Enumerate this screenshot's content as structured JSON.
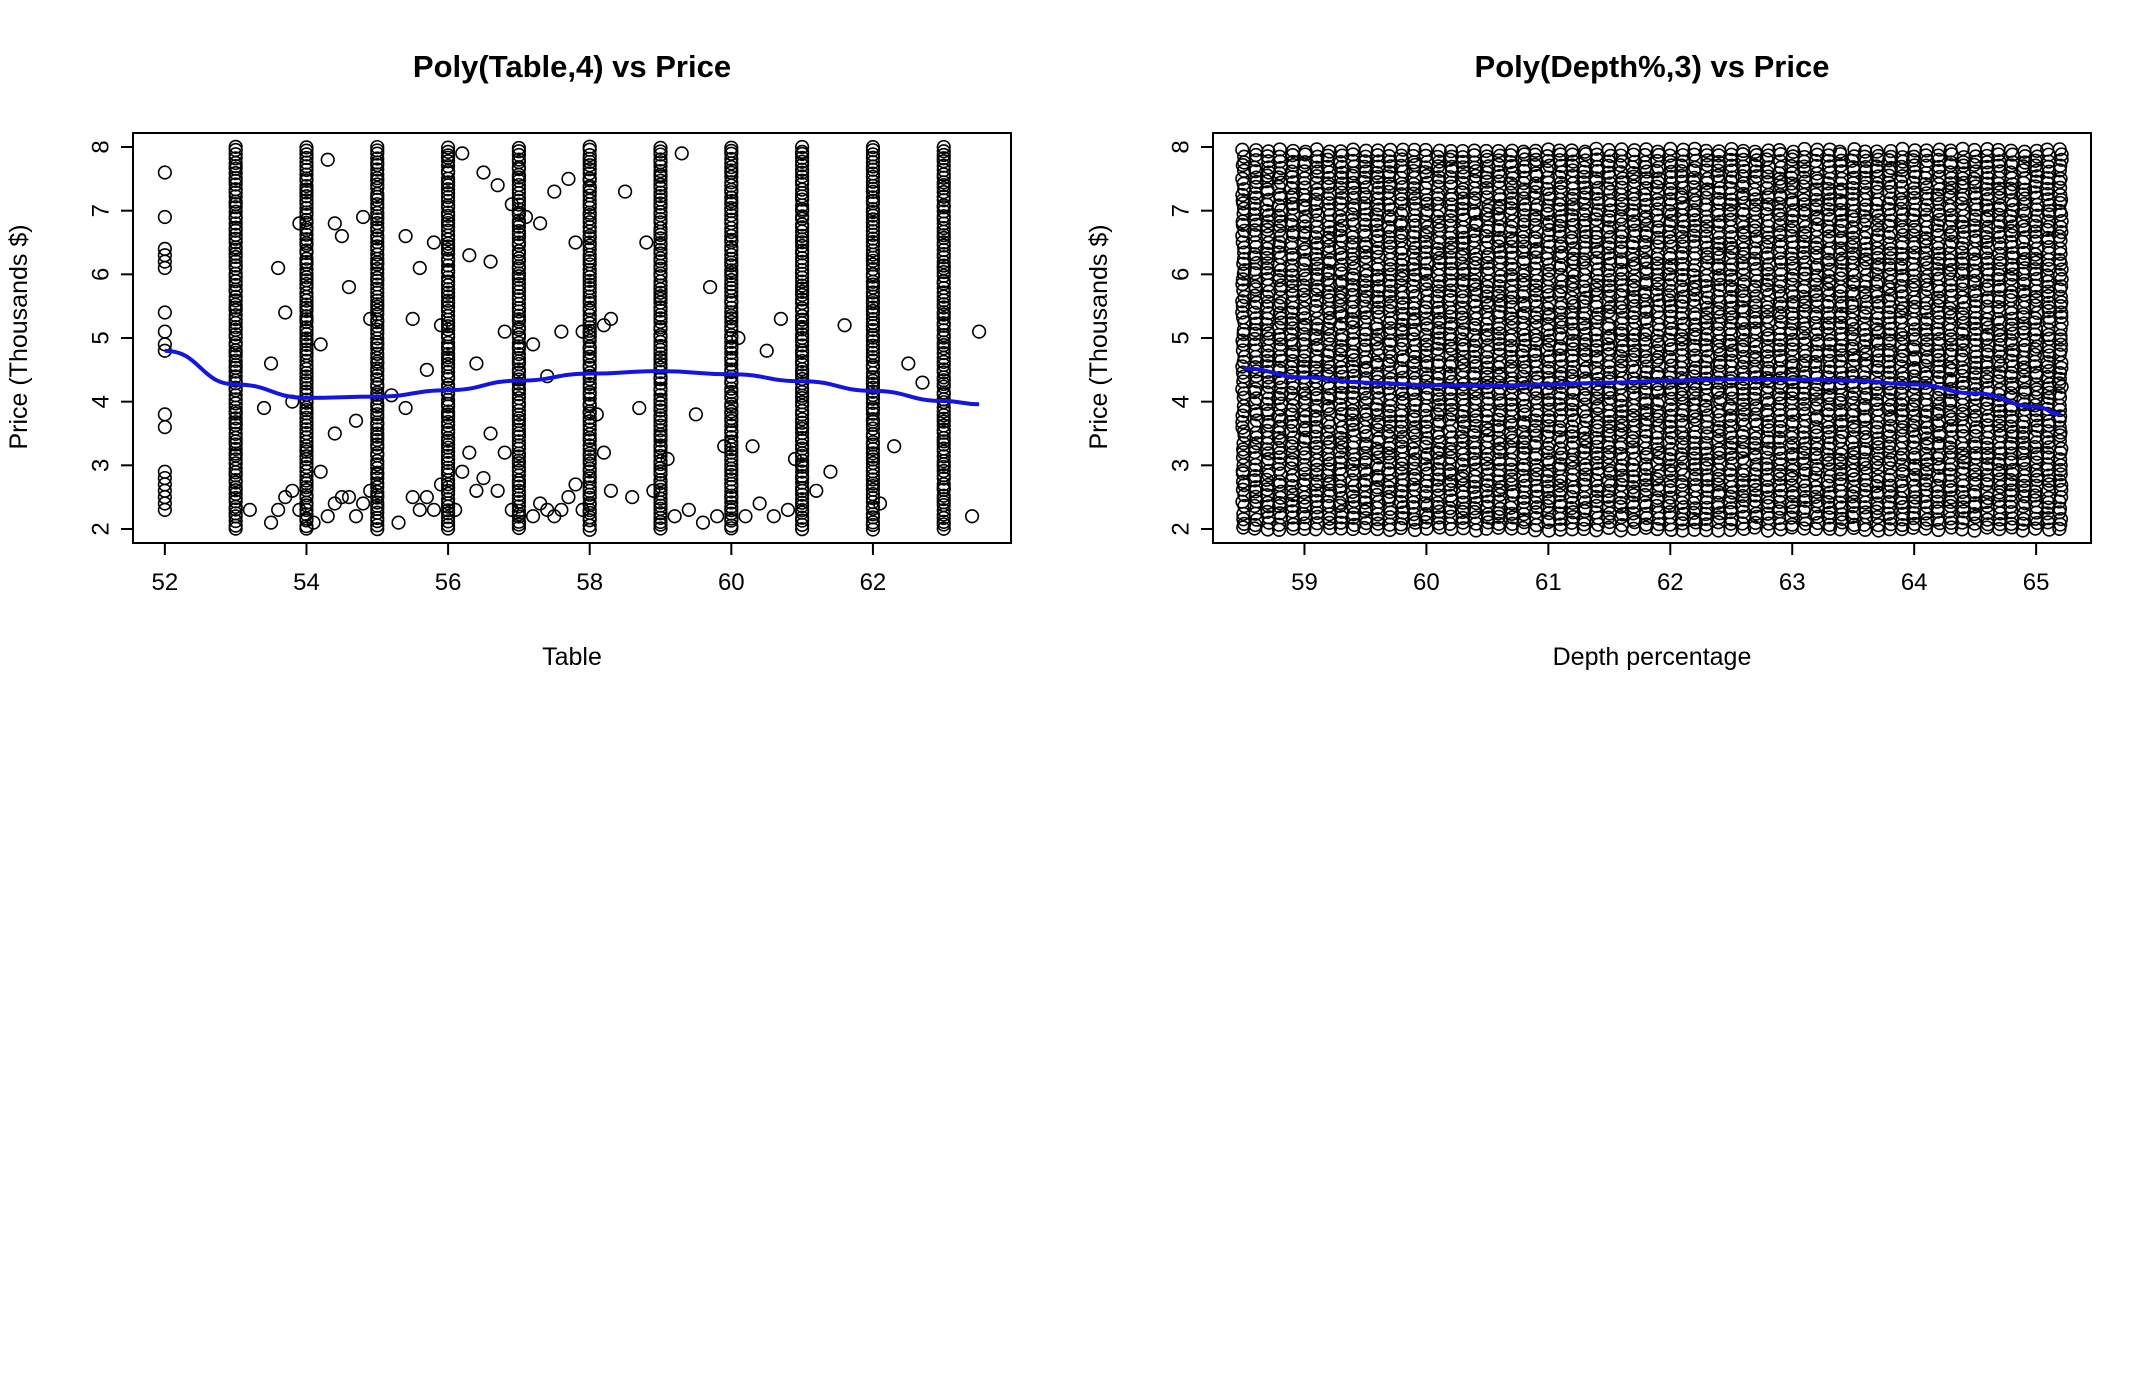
{
  "chart_data": [
    {
      "type": "scatter",
      "title": "Poly(Table,4) vs Price",
      "xlabel": "Table",
      "ylabel": "Price (Thousands $)",
      "xlim": [
        51.55,
        63.95
      ],
      "ylim": [
        1.78,
        8.22
      ],
      "xticks": [
        52,
        54,
        56,
        58,
        60,
        62
      ],
      "yticks": [
        2,
        3,
        4,
        5,
        6,
        7,
        8
      ],
      "grid": false,
      "point_style": "open circle",
      "point_color": "#000000",
      "series": [
        {
          "x": [
            52,
            52,
            52,
            52,
            52,
            52,
            52,
            52,
            52,
            52,
            52,
            52,
            52,
            52,
            52,
            52,
            52,
            52,
            52,
            53.2,
            53.4,
            53.5,
            53.5,
            53.6,
            53.6,
            53.7,
            53.7,
            53.8,
            53.8,
            53.9,
            53.9,
            54.1,
            54.2,
            54.2,
            54.3,
            54.3,
            54.4,
            54.4,
            54.4,
            54.5,
            54.5,
            54.6,
            54.6,
            54.7,
            54.7,
            54.8,
            54.8,
            54.9,
            54.9,
            55.2,
            55.3,
            55.4,
            55.4,
            55.5,
            55.5,
            55.6,
            55.6,
            55.7,
            55.7,
            55.8,
            55.8,
            55.9,
            55.9,
            56.1,
            56.2,
            56.2,
            56.3,
            56.3,
            56.4,
            56.4,
            56.5,
            56.5,
            56.6,
            56.6,
            56.7,
            56.7,
            56.8,
            56.8,
            56.9,
            56.9,
            57.1,
            57.2,
            57.2,
            57.3,
            57.3,
            57.4,
            57.4,
            57.5,
            57.5,
            57.6,
            57.6,
            57.7,
            57.7,
            57.8,
            57.8,
            57.9,
            57.9,
            58.1,
            58.2,
            58.2,
            58.3,
            58.3,
            58.5,
            58.6,
            58.7,
            58.8,
            58.9,
            59.1,
            59.2,
            59.3,
            59.4,
            59.5,
            59.6,
            59.7,
            59.8,
            59.9,
            60.1,
            60.2,
            60.3,
            60.4,
            60.5,
            60.6,
            60.7,
            60.8,
            60.9,
            61.2,
            61.4,
            61.6,
            62.1,
            62.3,
            62.5,
            62.7,
            63.4,
            63.5
          ],
          "y": [
            2.3,
            2.4,
            2.5,
            2.6,
            2.7,
            2.8,
            2.9,
            3.6,
            3.8,
            4.8,
            4.9,
            5.1,
            5.4,
            6.1,
            6.2,
            6.3,
            6.4,
            6.9,
            7.6,
            2.3,
            3.9,
            2.1,
            4.6,
            2.3,
            6.1,
            2.5,
            5.4,
            2.6,
            4,
            2.3,
            6.8,
            2.1,
            2.9,
            4.9,
            2.2,
            7.8,
            2.4,
            3.5,
            6.8,
            2.5,
            6.6,
            2.5,
            5.8,
            2.2,
            3.7,
            2.4,
            6.9,
            2.6,
            5.3,
            4.1,
            2.1,
            6.6,
            3.9,
            2.5,
            5.3,
            2.3,
            6.1,
            2.5,
            4.5,
            2.3,
            6.5,
            2.7,
            5.2,
            2.3,
            7.9,
            2.9,
            6.3,
            3.2,
            4.6,
            2.6,
            7.6,
            2.8,
            6.2,
            3.5,
            7.4,
            2.6,
            5.1,
            3.2,
            7.1,
            2.3,
            6.9,
            2.2,
            4.9,
            2.4,
            6.8,
            2.3,
            4.4,
            2.2,
            7.3,
            2.3,
            5.1,
            2.5,
            7.5,
            2.7,
            6.5,
            2.3,
            5.1,
            3.8,
            5.2,
            3.2,
            5.3,
            2.6,
            7.3,
            2.5,
            3.9,
            6.5,
            2.6,
            3.1,
            2.2,
            7.9,
            2.3,
            3.8,
            2.1,
            5.8,
            2.2,
            3.3,
            5,
            2.2,
            3.3,
            2.4,
            4.8,
            2.2,
            5.3,
            2.3,
            3.1,
            2.6,
            2.9,
            5.2,
            2.4,
            3.3,
            4.6,
            4.3,
            2.2,
            5.1
          ]
        },
        {
          "x_columns": [
            53,
            54,
            55,
            56,
            57,
            58,
            59,
            60,
            61,
            62,
            63
          ],
          "y_range": [
            2,
            8
          ]
        }
      ],
      "fit_line": {
        "color": "#1515e0",
        "x": [
          52,
          53,
          54,
          55,
          56,
          57,
          58,
          59,
          60,
          61,
          62,
          63,
          63.5
        ],
        "y": [
          4.8,
          4.27,
          4.06,
          4.08,
          4.18,
          4.33,
          4.44,
          4.48,
          4.43,
          4.32,
          4.17,
          4.01,
          3.96
        ]
      }
    },
    {
      "type": "scatter",
      "title": "Poly(Depth%,3) vs Price",
      "xlabel": "Depth percentage",
      "ylabel": "Price (Thousands $)",
      "xlim": [
        58.25,
        65.45
      ],
      "ylim": [
        1.78,
        8.22
      ],
      "xticks": [
        59,
        60,
        61,
        62,
        63,
        64,
        65
      ],
      "yticks": [
        2,
        3,
        4,
        5,
        6,
        7,
        8
      ],
      "grid": false,
      "point_style": "open circle",
      "point_color": "#000000",
      "series": [
        {
          "x_columns": [
            58.5,
            58.6,
            58.7,
            58.8,
            58.9,
            59,
            59.1,
            59.2,
            59.3,
            59.4,
            59.5,
            59.6,
            59.7,
            59.8,
            59.9,
            60,
            60.1,
            60.2,
            60.3,
            60.4,
            60.5,
            60.6,
            60.7,
            60.8,
            60.9,
            61,
            61.1,
            61.2,
            61.3,
            61.4,
            61.5,
            61.6,
            61.7,
            61.8,
            61.9,
            62,
            62.1,
            62.2,
            62.3,
            62.4,
            62.5,
            62.6,
            62.7,
            62.8,
            62.9,
            63,
            63.1,
            63.2,
            63.3,
            63.4,
            63.5,
            63.6,
            63.7,
            63.8,
            63.9,
            64,
            64.1,
            64.2,
            64.3,
            64.4,
            64.5,
            64.6,
            64.7,
            64.8,
            64.9,
            65,
            65.1,
            65.2
          ],
          "y_range": [
            2,
            8
          ]
        }
      ],
      "fit_line": {
        "color": "#1515e0",
        "x": [
          58.5,
          59,
          59.5,
          60,
          60.5,
          61,
          61.5,
          62,
          62.5,
          63,
          63.5,
          64,
          64.5,
          65,
          65.2
        ],
        "y": [
          4.52,
          4.38,
          4.3,
          4.26,
          4.25,
          4.27,
          4.3,
          4.33,
          4.35,
          4.35,
          4.33,
          4.27,
          4.13,
          3.92,
          3.8
        ]
      }
    }
  ]
}
